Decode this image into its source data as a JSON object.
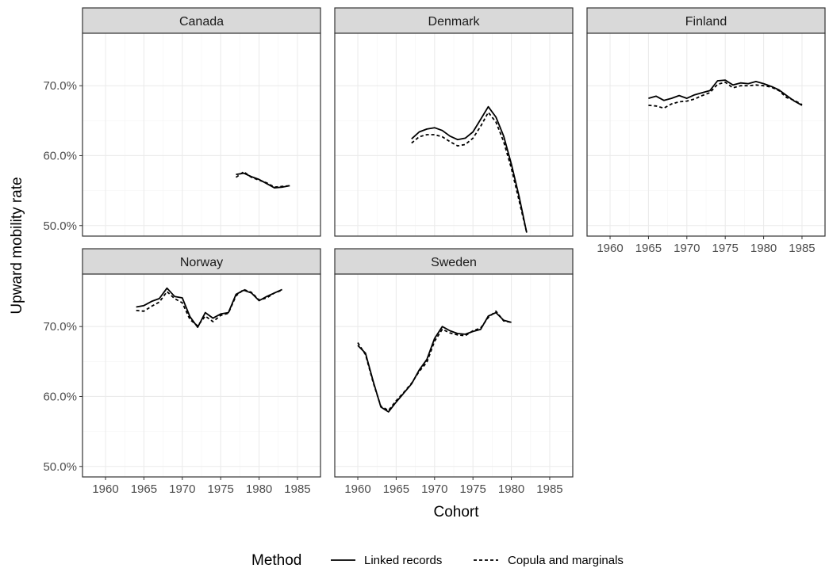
{
  "chart_data": {
    "type": "line",
    "facet": "wrap",
    "xlabel": "Cohort",
    "ylabel": "Upward mobility rate",
    "xlim": [
      1957,
      1988
    ],
    "ylim": [
      48.5,
      77.5
    ],
    "x_ticks": [
      1960,
      1965,
      1970,
      1975,
      1980,
      1985
    ],
    "x_tick_labels": [
      "1960",
      "1965",
      "1970",
      "1975",
      "1980",
      "1985"
    ],
    "y_ticks": [
      50,
      60,
      70
    ],
    "y_tick_labels": [
      "50.0%",
      "60.0%",
      "70.0%"
    ],
    "grid": true,
    "legend": {
      "title": "Method",
      "position": "bottom",
      "entries": [
        {
          "label": "Linked records",
          "linetype": "solid"
        },
        {
          "label": "Copula and marginals",
          "linetype": "dashed"
        }
      ]
    },
    "panels": [
      {
        "name": "Canada",
        "series": [
          {
            "method": "Linked records",
            "x": [
              1977,
              1978,
              1979,
              1980,
              1981,
              1982,
              1983,
              1984
            ],
            "y": [
              57.3,
              57.5,
              57.0,
              56.6,
              56.0,
              55.4,
              55.5,
              55.7
            ]
          },
          {
            "method": "Copula and marginals",
            "x": [
              1977,
              1978,
              1979,
              1980,
              1981,
              1982,
              1983,
              1984
            ],
            "y": [
              56.9,
              57.7,
              56.9,
              56.5,
              56.1,
              55.5,
              55.6,
              55.7
            ]
          }
        ]
      },
      {
        "name": "Denmark",
        "series": [
          {
            "method": "Linked records",
            "x": [
              1967,
              1968,
              1969,
              1970,
              1971,
              1972,
              1973,
              1974,
              1975,
              1976,
              1977,
              1978,
              1979,
              1980,
              1981,
              1982
            ],
            "y": [
              62.4,
              63.4,
              63.8,
              64.0,
              63.6,
              62.8,
              62.3,
              62.5,
              63.4,
              65.2,
              67.0,
              65.5,
              62.8,
              58.8,
              54.2,
              49.0
            ]
          },
          {
            "method": "Copula and marginals",
            "x": [
              1967,
              1968,
              1969,
              1970,
              1971,
              1972,
              1973,
              1974,
              1975,
              1976,
              1977,
              1978,
              1979,
              1980,
              1981,
              1982
            ],
            "y": [
              61.8,
              62.7,
              63.0,
              63.0,
              62.7,
              62.0,
              61.4,
              61.6,
              62.5,
              64.2,
              66.2,
              64.8,
              62.0,
              58.2,
              53.6,
              49.0
            ]
          }
        ]
      },
      {
        "name": "Finland",
        "series": [
          {
            "method": "Linked records",
            "x": [
              1965,
              1966,
              1967,
              1968,
              1969,
              1970,
              1971,
              1972,
              1973,
              1974,
              1975,
              1976,
              1977,
              1978,
              1979,
              1980,
              1981,
              1982,
              1983,
              1984,
              1985
            ],
            "y": [
              68.2,
              68.5,
              67.9,
              68.2,
              68.6,
              68.2,
              68.7,
              69.0,
              69.3,
              70.7,
              70.8,
              70.1,
              70.4,
              70.3,
              70.6,
              70.3,
              69.9,
              69.4,
              68.6,
              67.8,
              67.2
            ]
          },
          {
            "method": "Copula and marginals",
            "x": [
              1965,
              1966,
              1967,
              1968,
              1969,
              1970,
              1971,
              1972,
              1973,
              1974,
              1975,
              1976,
              1977,
              1978,
              1979,
              1980,
              1981,
              1982,
              1983,
              1984,
              1985
            ],
            "y": [
              67.2,
              67.1,
              66.8,
              67.4,
              67.7,
              67.8,
              68.1,
              68.6,
              69.0,
              70.2,
              70.5,
              69.7,
              70.0,
              70.0,
              70.1,
              70.0,
              69.8,
              69.3,
              68.3,
              67.9,
              67.3
            ]
          }
        ]
      },
      {
        "name": "Norway",
        "series": [
          {
            "method": "Linked records",
            "x": [
              1964,
              1965,
              1966,
              1967,
              1968,
              1969,
              1970,
              1971,
              1972,
              1973,
              1974,
              1975,
              1976,
              1977,
              1978,
              1979,
              1980,
              1981,
              1982,
              1983
            ],
            "y": [
              72.8,
              73.0,
              73.6,
              74.0,
              75.5,
              74.3,
              74.1,
              71.4,
              69.9,
              72.0,
              71.2,
              71.8,
              72.0,
              74.6,
              75.2,
              74.8,
              73.7,
              74.3,
              74.8,
              75.3
            ]
          },
          {
            "method": "Copula and marginals",
            "x": [
              1964,
              1965,
              1966,
              1967,
              1968,
              1969,
              1970,
              1971,
              1972,
              1973,
              1974,
              1975,
              1976,
              1977,
              1978,
              1979,
              1980,
              1981,
              1982,
              1983
            ],
            "y": [
              72.3,
              72.2,
              72.9,
              73.5,
              75.0,
              74.0,
              73.4,
              71.0,
              70.1,
              71.5,
              70.7,
              71.6,
              71.9,
              74.4,
              75.3,
              74.9,
              73.8,
              74.1,
              74.8,
              75.2
            ]
          }
        ]
      },
      {
        "name": "Sweden",
        "series": [
          {
            "method": "Linked records",
            "x": [
              1960,
              1961,
              1962,
              1963,
              1964,
              1965,
              1966,
              1967,
              1968,
              1969,
              1970,
              1971,
              1972,
              1973,
              1974,
              1975,
              1976,
              1977,
              1978,
              1979,
              1980
            ],
            "y": [
              67.3,
              66.2,
              62.2,
              58.5,
              57.8,
              59.2,
              60.5,
              61.8,
              63.8,
              65.3,
              68.3,
              70.0,
              69.4,
              69.0,
              68.9,
              69.3,
              69.6,
              71.5,
              72.0,
              70.9,
              70.6
            ]
          },
          {
            "method": "Copula and marginals",
            "x": [
              1960,
              1961,
              1962,
              1963,
              1964,
              1965,
              1966,
              1967,
              1968,
              1969,
              1970,
              1971,
              1972,
              1973,
              1974,
              1975,
              1976,
              1977,
              1978,
              1979,
              1980
            ],
            "y": [
              67.7,
              66.0,
              62.0,
              58.6,
              58.0,
              59.4,
              60.6,
              61.9,
              63.6,
              64.9,
              67.9,
              69.6,
              69.1,
              68.8,
              68.7,
              69.4,
              69.8,
              71.3,
              72.2,
              70.8,
              70.6
            ]
          }
        ]
      }
    ]
  }
}
